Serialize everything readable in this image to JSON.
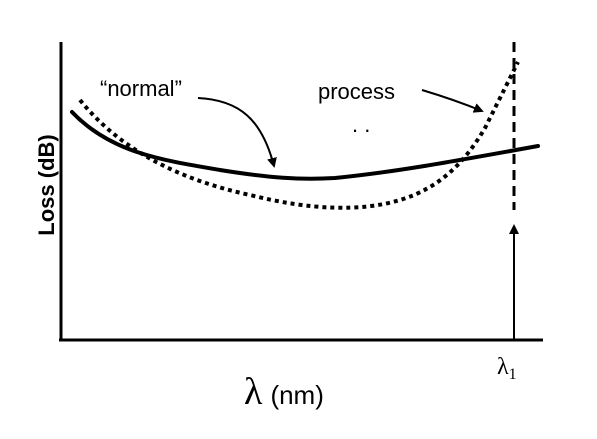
{
  "figure": {
    "ylabel": "Loss (dB)",
    "xlabel_symbol": "λ",
    "xlabel_unit": "(nm)",
    "marker_label_symbol": "λ",
    "marker_label_sub": "1",
    "annotations": {
      "normal": "“normal”",
      "process": "process",
      "dots": ". ."
    },
    "curves": [
      {
        "key": "normal",
        "style": "solid"
      },
      {
        "key": "process",
        "style": "dotted"
      }
    ]
  }
}
